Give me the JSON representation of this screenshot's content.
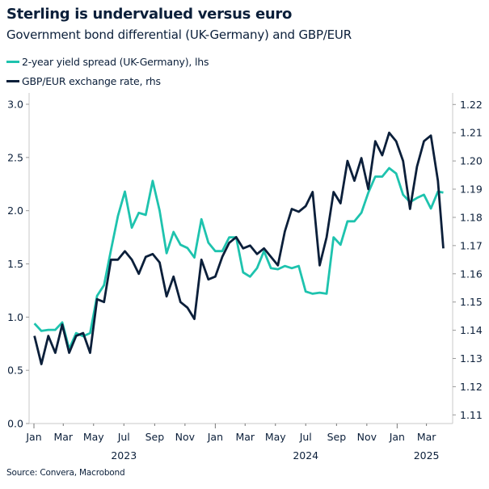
{
  "header": {
    "title": "Sterling is undervalued versus euro",
    "subtitle": "Government bond differential (UK-Germany) and GBP/EUR"
  },
  "footer": {
    "source": "Source: Convera, Macrobond"
  },
  "colors": {
    "spread": "#1ec3ae",
    "fx": "#0b1f3a",
    "axis": "#c8c8c8"
  },
  "chart_data": {
    "type": "line",
    "title": "Sterling is undervalued versus euro",
    "subtitle": "Government bond differential (UK-Germany) and GBP/EUR",
    "legend_position": "top-left",
    "grid": false,
    "x": [
      "2023-01-02",
      "2023-01-16",
      "2023-01-30",
      "2023-02-13",
      "2023-02-27",
      "2023-03-13",
      "2023-03-27",
      "2023-04-10",
      "2023-04-24",
      "2023-05-08",
      "2023-05-22",
      "2023-06-05",
      "2023-06-19",
      "2023-07-03",
      "2023-07-17",
      "2023-07-31",
      "2023-08-14",
      "2023-08-28",
      "2023-09-11",
      "2023-09-25",
      "2023-10-09",
      "2023-10-23",
      "2023-11-06",
      "2023-11-20",
      "2023-12-04",
      "2023-12-18",
      "2024-01-01",
      "2024-01-15",
      "2024-01-29",
      "2024-02-12",
      "2024-02-26",
      "2024-03-11",
      "2024-03-25",
      "2024-04-08",
      "2024-04-22",
      "2024-05-06",
      "2024-05-20",
      "2024-06-03",
      "2024-06-17",
      "2024-07-01",
      "2024-07-15",
      "2024-07-29",
      "2024-08-12",
      "2024-08-26",
      "2024-09-09",
      "2024-09-23",
      "2024-10-07",
      "2024-10-21",
      "2024-11-04",
      "2024-11-18",
      "2024-12-02",
      "2024-12-16",
      "2024-12-30",
      "2025-01-13",
      "2025-01-27",
      "2025-02-10",
      "2025-02-24",
      "2025-03-10",
      "2025-03-24",
      "2025-04-04"
    ],
    "series": [
      {
        "name": "2-year yield spread (UK-Germany), lhs",
        "axis": "left",
        "color": "#1ec3ae",
        "values": [
          0.94,
          0.87,
          0.88,
          0.88,
          0.95,
          0.7,
          0.85,
          0.82,
          0.85,
          1.2,
          1.3,
          1.63,
          1.95,
          2.18,
          1.84,
          1.98,
          1.96,
          2.28,
          2.0,
          1.6,
          1.8,
          1.68,
          1.65,
          1.56,
          1.92,
          1.7,
          1.62,
          1.62,
          1.75,
          1.75,
          1.42,
          1.38,
          1.46,
          1.62,
          1.46,
          1.45,
          1.48,
          1.46,
          1.48,
          1.24,
          1.22,
          1.23,
          1.22,
          1.75,
          1.68,
          1.9,
          1.9,
          1.98,
          2.17,
          2.32,
          2.32,
          2.4,
          2.35,
          2.15,
          2.08,
          2.12,
          2.15,
          2.02,
          2.18,
          2.17
        ]
      },
      {
        "name": "GBP/EUR exchange rate, rhs",
        "axis": "right",
        "color": "#0b1f3a",
        "values": [
          1.138,
          1.128,
          1.138,
          1.132,
          1.142,
          1.132,
          1.138,
          1.139,
          1.132,
          1.151,
          1.15,
          1.165,
          1.165,
          1.168,
          1.165,
          1.16,
          1.166,
          1.167,
          1.164,
          1.152,
          1.159,
          1.15,
          1.148,
          1.144,
          1.165,
          1.158,
          1.159,
          1.166,
          1.171,
          1.173,
          1.169,
          1.17,
          1.167,
          1.169,
          1.166,
          1.163,
          1.175,
          1.183,
          1.182,
          1.184,
          1.189,
          1.163,
          1.173,
          1.189,
          1.185,
          1.2,
          1.193,
          1.201,
          1.19,
          1.207,
          1.202,
          1.21,
          1.207,
          1.2,
          1.183,
          1.198,
          1.207,
          1.209,
          1.193,
          1.169
        ]
      }
    ],
    "y_left": {
      "lim": [
        0.0,
        3.0
      ],
      "ticks": [
        "0.0",
        "0.5",
        "1.0",
        "1.5",
        "2.0",
        "2.5",
        "3.0"
      ]
    },
    "y_right": {
      "lim": [
        1.11,
        1.22
      ],
      "ticks": [
        "1.11",
        "1.12",
        "1.13",
        "1.14",
        "1.15",
        "1.16",
        "1.17",
        "1.18",
        "1.19",
        "1.20",
        "1.21",
        "1.22"
      ]
    },
    "x_axis": {
      "month_ticks": [
        {
          "date": "2023-01-01",
          "label": "Jan"
        },
        {
          "date": "2023-03-01",
          "label": "Mar"
        },
        {
          "date": "2023-05-01",
          "label": "May"
        },
        {
          "date": "2023-07-01",
          "label": "Jul"
        },
        {
          "date": "2023-09-01",
          "label": "Sep"
        },
        {
          "date": "2023-11-01",
          "label": "Nov"
        },
        {
          "date": "2024-01-01",
          "label": "Jan"
        },
        {
          "date": "2024-03-01",
          "label": "Mar"
        },
        {
          "date": "2024-05-01",
          "label": "May"
        },
        {
          "date": "2024-07-01",
          "label": "Jul"
        },
        {
          "date": "2024-09-01",
          "label": "Sep"
        },
        {
          "date": "2024-11-01",
          "label": "Nov"
        },
        {
          "date": "2025-01-01",
          "label": "Jan"
        },
        {
          "date": "2025-03-01",
          "label": "Mar"
        }
      ],
      "year_labels": [
        {
          "date": "2023-07-01",
          "label": "2023"
        },
        {
          "date": "2024-07-01",
          "label": "2024"
        },
        {
          "date": "2025-03-01",
          "label": "2025"
        }
      ]
    }
  }
}
